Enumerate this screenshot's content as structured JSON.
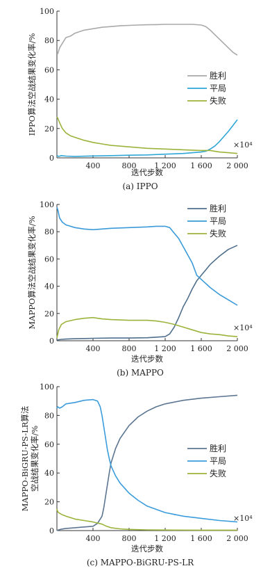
{
  "chart_data": [
    {
      "type": "line",
      "caption": "(a) IPPO",
      "xlabel": "迭代步数",
      "ylabel": "IPPO算法空战结果变化率/%",
      "x_multiplier": "×10⁴",
      "xlim": [
        0,
        2000
      ],
      "ylim": [
        0,
        100
      ],
      "xticks": [
        400,
        800,
        1200,
        1600,
        2000
      ],
      "xtick_labels": [
        "400",
        "800",
        "1 200",
        "1 600",
        "2 000"
      ],
      "yticks": [
        0,
        20,
        40,
        60,
        80,
        100
      ],
      "grid": false,
      "legend_position": "center-right",
      "series": [
        {
          "name": "胜利",
          "color": "#a9a9a9",
          "x": [
            0,
            10,
            30,
            60,
            100,
            150,
            200,
            300,
            400,
            500,
            600,
            700,
            800,
            900,
            1000,
            1100,
            1200,
            1300,
            1400,
            1500,
            1600,
            1650,
            1700,
            1750,
            1800,
            1850,
            1900,
            1950,
            2000
          ],
          "y": [
            71,
            71,
            75,
            78,
            82,
            83,
            85,
            87,
            88,
            89,
            89.5,
            90,
            90.3,
            90.5,
            90.7,
            90.8,
            91,
            91,
            91,
            91,
            90.5,
            89.5,
            87,
            84,
            81,
            78,
            75,
            72,
            70
          ]
        },
        {
          "name": "平局",
          "color": "#2ea6d6",
          "x": [
            0,
            20,
            50,
            100,
            200,
            400,
            600,
            800,
            1000,
            1200,
            1400,
            1600,
            1650,
            1700,
            1750,
            1800,
            1850,
            1900,
            1950,
            2000
          ],
          "y": [
            1.5,
            1,
            1.5,
            1.2,
            1,
            1.3,
            1.5,
            1.8,
            2,
            2.5,
            3,
            4,
            4.5,
            6,
            8,
            11,
            14.5,
            18,
            22,
            26
          ]
        },
        {
          "name": "失败",
          "color": "#9bb33a",
          "x": [
            0,
            10,
            30,
            60,
            100,
            150,
            200,
            300,
            400,
            500,
            600,
            800,
            1000,
            1200,
            1400,
            1600,
            1700,
            1800,
            1900,
            2000
          ],
          "y": [
            28,
            27,
            24,
            20,
            17,
            15,
            14,
            12,
            10.5,
            9.5,
            8.5,
            7.5,
            6.5,
            6,
            5.5,
            5,
            5,
            4,
            3.5,
            3
          ]
        }
      ]
    },
    {
      "type": "line",
      "caption": "(b) MAPPO",
      "xlabel": "迭代步数",
      "ylabel": "MAPPO算法空战结果变化率/%",
      "x_multiplier": "×10⁴",
      "xlim": [
        0,
        2000
      ],
      "ylim": [
        0,
        100
      ],
      "xticks": [
        400,
        800,
        1200,
        1600,
        2000
      ],
      "xtick_labels": [
        "400",
        "800",
        "1 200",
        "1 600",
        "2 000"
      ],
      "yticks": [
        0,
        20,
        40,
        60,
        80,
        100
      ],
      "grid": false,
      "legend_position": "top-right",
      "series": [
        {
          "name": "胜利",
          "color": "#4f6f8c",
          "x": [
            0,
            50,
            100,
            200,
            400,
            600,
            800,
            1000,
            1200,
            1250,
            1300,
            1350,
            1400,
            1450,
            1500,
            1550,
            1600,
            1650,
            1700,
            1800,
            1900,
            2000
          ],
          "y": [
            0.5,
            1,
            1.2,
            1.5,
            1.8,
            2,
            2,
            2.2,
            3,
            5,
            10,
            17,
            25,
            31,
            38,
            44,
            48,
            52,
            56,
            62,
            67,
            70
          ]
        },
        {
          "name": "平局",
          "color": "#3a9ad9",
          "x": [
            0,
            10,
            30,
            60,
            100,
            200,
            300,
            400,
            500,
            600,
            800,
            1000,
            1100,
            1200,
            1250,
            1300,
            1350,
            1400,
            1500,
            1550,
            1600,
            1700,
            1800,
            1900,
            2000
          ],
          "y": [
            98,
            96,
            90,
            87,
            85,
            83,
            82,
            81.5,
            82,
            82.5,
            83,
            83.5,
            84,
            84,
            83,
            79,
            75,
            69,
            57,
            48,
            45,
            39,
            34,
            30,
            26
          ]
        },
        {
          "name": "失败",
          "color": "#9bb33a",
          "x": [
            0,
            20,
            50,
            100,
            200,
            300,
            400,
            500,
            600,
            800,
            1000,
            1100,
            1200,
            1300,
            1400,
            1500,
            1600,
            1700,
            1800,
            1900,
            2000
          ],
          "y": [
            2,
            8,
            12,
            14,
            15.5,
            16.5,
            17,
            16,
            15.5,
            15,
            15,
            14.5,
            13.5,
            12,
            10,
            8,
            6,
            5,
            4.5,
            3.5,
            3
          ]
        }
      ]
    },
    {
      "type": "line",
      "caption": "(c) MAPPO-BiGRU-PS-LR",
      "xlabel": "迭代步数",
      "ylabel_lines": [
        "MAPPO-BiGRU-PS-LR算法",
        "空战结果变化率/%"
      ],
      "x_multiplier": "×10⁴",
      "xlim": [
        0,
        2000
      ],
      "ylim": [
        0,
        100
      ],
      "xticks": [
        400,
        800,
        1200,
        1600,
        2000
      ],
      "xtick_labels": [
        "400",
        "800",
        "1 200",
        "1 600",
        "2 000"
      ],
      "yticks": [
        0,
        20,
        40,
        60,
        80,
        100
      ],
      "grid": false,
      "legend_position": "center-right",
      "series": [
        {
          "name": "胜利",
          "color": "#5b7590",
          "x": [
            0,
            20,
            50,
            100,
            200,
            300,
            400,
            450,
            500,
            520,
            540,
            560,
            580,
            600,
            650,
            700,
            800,
            900,
            1000,
            1100,
            1200,
            1400,
            1600,
            1800,
            2000
          ],
          "y": [
            0,
            0.5,
            1,
            1.5,
            2,
            2.5,
            3,
            5,
            10,
            16,
            24,
            32,
            40,
            47,
            57,
            64,
            73,
            79,
            83,
            86,
            88,
            90.5,
            92,
            93,
            94
          ]
        },
        {
          "name": "平局",
          "color": "#3b9cdc",
          "x": [
            0,
            10,
            30,
            60,
            100,
            200,
            300,
            400,
            450,
            480,
            500,
            520,
            540,
            560,
            580,
            600,
            650,
            700,
            800,
            900,
            1000,
            1200,
            1400,
            1600,
            1800,
            2000
          ],
          "y": [
            85,
            86,
            85,
            86,
            88,
            89,
            90.5,
            91,
            90,
            86,
            80,
            72,
            64,
            56,
            50,
            45,
            38,
            33,
            26,
            21,
            17,
            12.5,
            10,
            8.5,
            7,
            6
          ]
        },
        {
          "name": "失败",
          "color": "#9bb33a",
          "x": [
            0,
            10,
            30,
            60,
            100,
            200,
            300,
            400,
            500,
            550,
            600,
            700,
            800,
            1000,
            1200,
            1600,
            2000
          ],
          "y": [
            15,
            13,
            12,
            11,
            10,
            8,
            7,
            6,
            4.5,
            3,
            2,
            1.2,
            0.8,
            0.5,
            0.4,
            0.3,
            0.3
          ]
        }
      ]
    }
  ]
}
